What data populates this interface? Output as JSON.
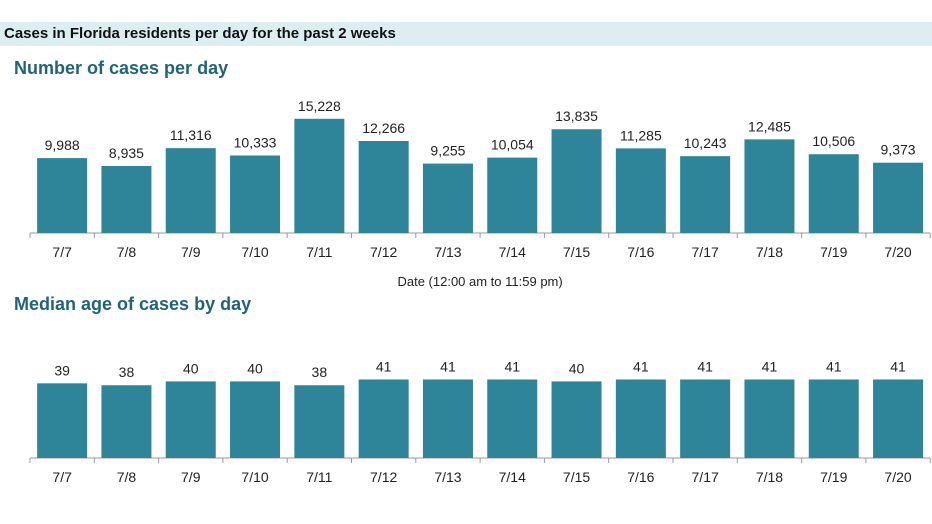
{
  "header": {
    "title": "Cases in Florida residents per day for the past 2 weeks"
  },
  "colors": {
    "bar": "#2e8599",
    "heading": "#1f6478",
    "header_bg": "#ddeef3",
    "axis": "#9a9a9a"
  },
  "chart_data": [
    {
      "type": "bar",
      "title": "Number of cases per day",
      "xlabel": "Date (12:00 am to 11:59 pm)",
      "ylabel": "",
      "categories": [
        "7/7",
        "7/8",
        "7/9",
        "7/10",
        "7/11",
        "7/12",
        "7/13",
        "7/14",
        "7/15",
        "7/16",
        "7/17",
        "7/18",
        "7/19",
        "7/20"
      ],
      "values": [
        9988,
        8935,
        11316,
        10333,
        15228,
        12266,
        9255,
        10054,
        13835,
        11285,
        10243,
        12485,
        10506,
        9373
      ],
      "value_labels": [
        "9,988",
        "8,935",
        "11,316",
        "10,333",
        "15,228",
        "12,266",
        "9,255",
        "10,054",
        "13,835",
        "11,285",
        "10,243",
        "12,485",
        "10,506",
        "9,373"
      ],
      "ylim": [
        0,
        16000
      ],
      "grid": false
    },
    {
      "type": "bar",
      "title": "Median age of cases by day",
      "xlabel": "",
      "ylabel": "",
      "categories": [
        "7/7",
        "7/8",
        "7/9",
        "7/10",
        "7/11",
        "7/12",
        "7/13",
        "7/14",
        "7/15",
        "7/16",
        "7/17",
        "7/18",
        "7/19",
        "7/20"
      ],
      "values": [
        39,
        38,
        40,
        40,
        38,
        41,
        41,
        41,
        40,
        41,
        41,
        41,
        41,
        41
      ],
      "value_labels": [
        "39",
        "38",
        "40",
        "40",
        "38",
        "41",
        "41",
        "41",
        "40",
        "41",
        "41",
        "41",
        "41",
        "41"
      ],
      "ylim": [
        0,
        47
      ],
      "grid": false
    }
  ]
}
